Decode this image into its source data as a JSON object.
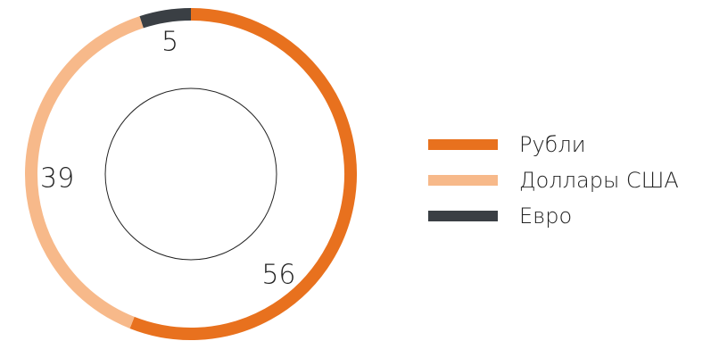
{
  "chart_data": {
    "type": "pie",
    "title": "",
    "categories": [
      "Рубли",
      "Доллары США",
      "Евро"
    ],
    "values": [
      56,
      39,
      5
    ],
    "colors": [
      "#e8711e",
      "#f7b98a",
      "#3a3f44"
    ],
    "labels": [
      "56",
      "39",
      "5"
    ],
    "legend_position": "right"
  }
}
